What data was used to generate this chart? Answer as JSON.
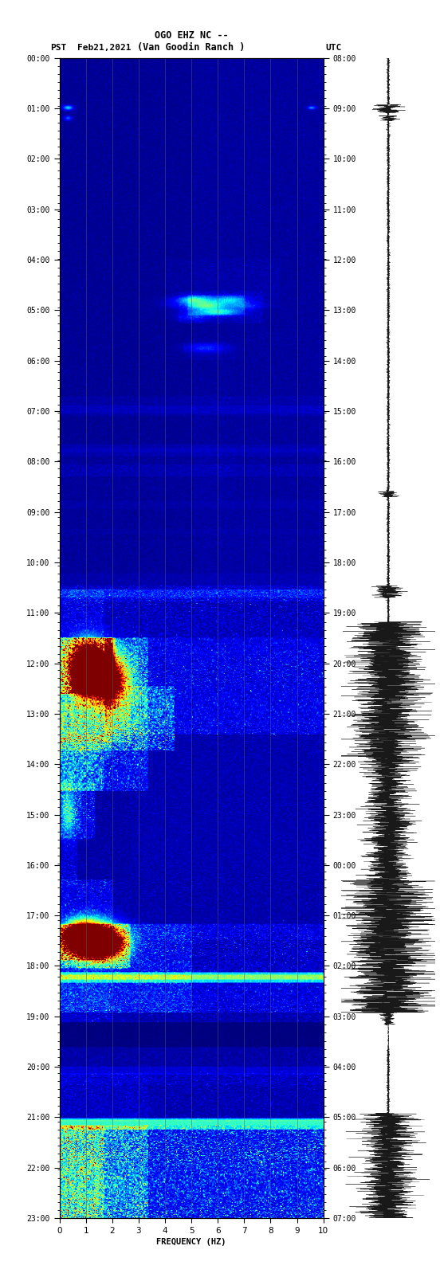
{
  "title_line1": "OGO EHZ NC --",
  "title_line2": "(Van Goodin Ranch )",
  "date_label": "Feb21,2021",
  "pst_label": "PST",
  "utc_label": "UTC",
  "xlabel": "FREQUENCY (HZ)",
  "freq_min": 0,
  "freq_max": 10,
  "pst_ticks": [
    "00:00",
    "01:00",
    "02:00",
    "03:00",
    "04:00",
    "05:00",
    "06:00",
    "07:00",
    "08:00",
    "09:00",
    "10:00",
    "11:00",
    "12:00",
    "13:00",
    "14:00",
    "15:00",
    "16:00",
    "17:00",
    "18:00",
    "19:00",
    "20:00",
    "21:00",
    "22:00",
    "23:00"
  ],
  "utc_ticks": [
    "08:00",
    "09:00",
    "10:00",
    "11:00",
    "12:00",
    "13:00",
    "14:00",
    "15:00",
    "16:00",
    "17:00",
    "18:00",
    "19:00",
    "20:00",
    "21:00",
    "22:00",
    "23:00",
    "00:00",
    "01:00",
    "02:00",
    "03:00",
    "04:00",
    "05:00",
    "06:00",
    "07:00"
  ],
  "colormap": "jet",
  "fig_width": 5.52,
  "fig_height": 16.13,
  "dpi": 100
}
